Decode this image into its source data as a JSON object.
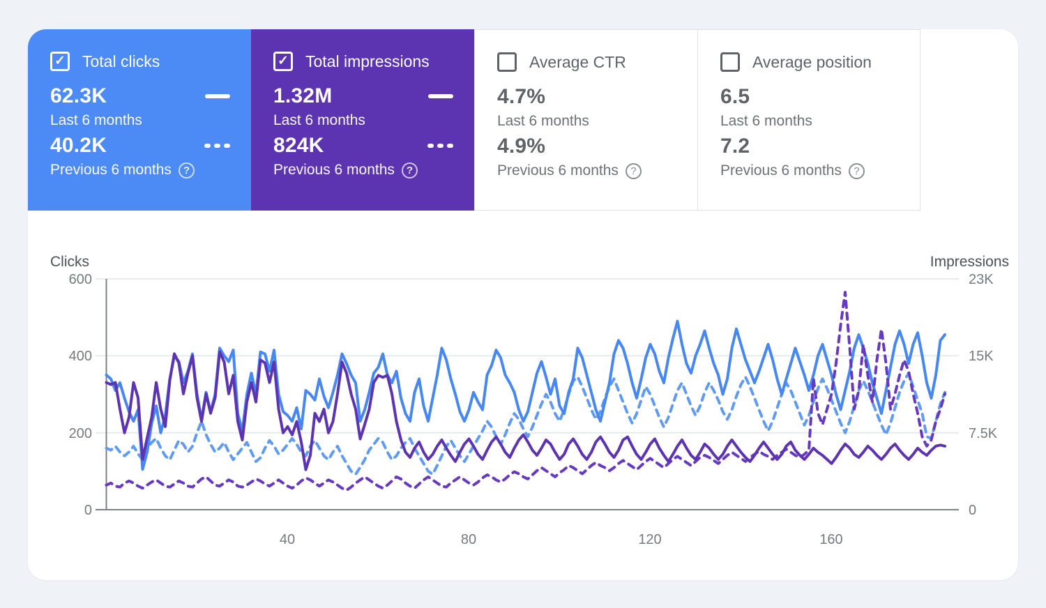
{
  "icons": {
    "check": "✓",
    "help": "?"
  },
  "cards": [
    {
      "label": "Total clicks",
      "checked": true,
      "value_current": "62.3K",
      "period_current": "Last 6 months",
      "value_previous": "40.2K",
      "period_previous": "Previous 6 months",
      "bg": "#4c8bf5"
    },
    {
      "label": "Total impressions",
      "checked": true,
      "value_current": "1.32M",
      "period_current": "Last 6 months",
      "value_previous": "824K",
      "period_previous": "Previous 6 months",
      "bg": "#5c34b2"
    },
    {
      "label": "Average CTR",
      "checked": false,
      "value_current": "4.7%",
      "period_current": "Last 6 months",
      "value_previous": "4.9%",
      "period_previous": "Previous 6 months"
    },
    {
      "label": "Average position",
      "checked": false,
      "value_current": "6.5",
      "period_current": "Last 6 months",
      "value_previous": "7.2",
      "period_previous": "Previous 6 months"
    }
  ],
  "chart": {
    "left_axis_title": "Clicks",
    "right_axis_title": "Impressions"
  },
  "chart_data": {
    "type": "line",
    "x": "daily index over last/previous 6 months (≈186 days)",
    "x_ticks": [
      40,
      80,
      120,
      160
    ],
    "left_axis": {
      "title": "Clicks",
      "ticks": [
        600,
        400,
        200,
        0
      ],
      "range": [
        0,
        600
      ]
    },
    "right_axis": {
      "title": "Impressions",
      "ticks": [
        "23K",
        "15K",
        "7.5K",
        "0"
      ],
      "range_k": [
        0,
        22.5
      ]
    },
    "grid": true,
    "series": [
      {
        "id": "clicks-previous",
        "name": "Clicks — Previous 6 months",
        "color": "#5f9bf4",
        "dashed": true,
        "axis": "left",
        "values": [
          160,
          155,
          165,
          150,
          140,
          150,
          165,
          145,
          130,
          160,
          175,
          185,
          160,
          140,
          130,
          155,
          180,
          170,
          150,
          165,
          200,
          230,
          195,
          170,
          150,
          160,
          175,
          150,
          130,
          145,
          160,
          175,
          150,
          125,
          135,
          160,
          180,
          165,
          145,
          155,
          170,
          185,
          170,
          150,
          140,
          165,
          180,
          160,
          140,
          130,
          150,
          165,
          140,
          120,
          100,
          92,
          110,
          130,
          155,
          170,
          185,
          175,
          150,
          130,
          140,
          160,
          175,
          185,
          160,
          140,
          120,
          100,
          92,
          115,
          140,
          165,
          180,
          160,
          140,
          125,
          145,
          165,
          185,
          205,
          230,
          215,
          190,
          170,
          195,
          225,
          250,
          235,
          210,
          190,
          215,
          245,
          275,
          300,
          280,
          250,
          230,
          260,
          300,
          335,
          345,
          320,
          290,
          260,
          235,
          255,
          290,
          320,
          340,
          310,
          280,
          250,
          225,
          250,
          285,
          320,
          300,
          270,
          240,
          215,
          240,
          275,
          310,
          330,
          300,
          270,
          245,
          270,
          305,
          330,
          310,
          285,
          255,
          235,
          260,
          295,
          325,
          345,
          320,
          290,
          260,
          230,
          205,
          230,
          265,
          300,
          330,
          310,
          280,
          250,
          220,
          245,
          280,
          315,
          340,
          315,
          285,
          255,
          225,
          200,
          230,
          270,
          310,
          335,
          310,
          280,
          250,
          220,
          195,
          225,
          265,
          305,
          335,
          355,
          320,
          285,
          250,
          190,
          185,
          230,
          275,
          305
        ]
      },
      {
        "id": "clicks-current",
        "name": "Clicks — Last 6 months",
        "color": "#4687f1",
        "dashed": false,
        "axis": "left",
        "values": [
          350,
          340,
          310,
          330,
          290,
          255,
          230,
          260,
          105,
          150,
          225,
          270,
          200,
          245,
          340,
          400,
          385,
          330,
          360,
          405,
          300,
          235,
          305,
          255,
          300,
          420,
          400,
          385,
          415,
          250,
          205,
          300,
          355,
          300,
          410,
          405,
          360,
          415,
          300,
          255,
          245,
          230,
          265,
          210,
          310,
          300,
          285,
          340,
          295,
          265,
          305,
          350,
          405,
          380,
          350,
          330,
          230,
          260,
          305,
          355,
          370,
          405,
          350,
          330,
          360,
          290,
          250,
          230,
          305,
          340,
          270,
          230,
          290,
          350,
          420,
          390,
          340,
          300,
          255,
          230,
          260,
          305,
          280,
          260,
          350,
          375,
          415,
          395,
          350,
          330,
          305,
          260,
          230,
          255,
          305,
          355,
          385,
          345,
          300,
          340,
          270,
          250,
          305,
          340,
          420,
          395,
          350,
          305,
          260,
          230,
          280,
          330,
          405,
          440,
          420,
          380,
          330,
          290,
          340,
          395,
          430,
          405,
          360,
          330,
          395,
          445,
          490,
          430,
          380,
          355,
          400,
          430,
          465,
          420,
          380,
          350,
          300,
          340,
          420,
          470,
          430,
          390,
          360,
          330,
          360,
          395,
          430,
          390,
          340,
          300,
          340,
          380,
          420,
          385,
          350,
          310,
          350,
          400,
          430,
          390,
          350,
          300,
          260,
          310,
          360,
          420,
          455,
          420,
          380,
          330,
          290,
          250,
          310,
          370,
          430,
          465,
          430,
          380,
          430,
          460,
          400,
          330,
          290,
          350,
          440,
          455
        ]
      },
      {
        "id": "impressions-previous",
        "name": "Impressions (K) — Previous 6 months",
        "color": "#6539c0",
        "dashed": true,
        "axis": "right",
        "values": [
          2.4,
          2.6,
          2.3,
          2.2,
          2.6,
          2.8,
          2.6,
          2.3,
          2.1,
          2.4,
          2.7,
          2.9,
          2.6,
          2.3,
          2.2,
          2.5,
          2.8,
          2.6,
          2.3,
          2.2,
          2.6,
          3.0,
          3.2,
          2.8,
          2.4,
          2.3,
          2.6,
          2.9,
          2.7,
          2.3,
          2.2,
          2.4,
          2.7,
          3.0,
          2.8,
          2.5,
          2.3,
          2.6,
          2.9,
          2.6,
          2.3,
          2.1,
          2.4,
          2.8,
          3.1,
          2.9,
          2.6,
          2.3,
          2.6,
          2.9,
          2.7,
          2.4,
          2.1,
          1.9,
          2.2,
          2.6,
          2.9,
          3.2,
          2.9,
          2.6,
          2.3,
          2.1,
          2.4,
          2.8,
          3.2,
          3.0,
          2.6,
          2.3,
          2.1,
          2.5,
          2.9,
          3.2,
          2.9,
          2.6,
          2.3,
          2.2,
          2.6,
          2.9,
          3.2,
          2.9,
          2.6,
          2.4,
          2.7,
          3.1,
          3.4,
          3.2,
          2.9,
          2.7,
          3.0,
          3.4,
          3.7,
          3.5,
          3.2,
          3.0,
          3.4,
          3.8,
          4.1,
          3.8,
          3.5,
          3.2,
          3.6,
          3.9,
          4.3,
          4.1,
          3.8,
          3.5,
          3.9,
          4.3,
          4.6,
          4.3,
          4.1,
          3.8,
          4.1,
          4.5,
          4.8,
          4.5,
          4.2,
          3.9,
          4.3,
          4.7,
          5.0,
          4.7,
          4.4,
          4.1,
          4.5,
          4.9,
          5.2,
          4.9,
          4.6,
          4.3,
          4.7,
          5.1,
          5.3,
          5.1,
          4.8,
          4.5,
          4.9,
          5.3,
          5.6,
          5.3,
          5.0,
          4.7,
          5.1,
          5.4,
          5.7,
          5.4,
          5.2,
          4.9,
          5.3,
          5.6,
          5.9,
          5.6,
          5.3,
          5.1,
          5.4,
          5.8,
          12.8,
          9.4,
          8.3,
          9.8,
          11.3,
          14.3,
          18.0,
          21.2,
          15.8,
          9.8,
          11.6,
          16.1,
          13.1,
          10.5,
          14.6,
          17.6,
          14.3,
          9.8,
          11.3,
          13.1,
          14.6,
          13.5,
          11.3,
          9.4,
          7.1,
          6.2,
          6.8,
          8.6,
          9.8,
          11.3
        ]
      },
      {
        "id": "impressions-current",
        "name": "Impressions (K) — Last 6 months",
        "color": "#5c33b0",
        "dashed": false,
        "axis": "right",
        "values": [
          12.4,
          12.2,
          12.4,
          9.8,
          7.5,
          9.0,
          12.4,
          10.9,
          4.9,
          7.0,
          9.0,
          12.4,
          9.8,
          8.1,
          12.6,
          15.2,
          14.3,
          11.3,
          13.3,
          15.0,
          10.9,
          8.6,
          11.3,
          9.4,
          10.9,
          15.4,
          14.4,
          11.3,
          13.1,
          8.6,
          6.8,
          10.5,
          12.4,
          10.5,
          14.6,
          14.3,
          12.4,
          14.4,
          9.8,
          7.5,
          8.1,
          7.3,
          8.6,
          6.6,
          3.9,
          5.3,
          9.4,
          8.6,
          9.8,
          7.5,
          8.6,
          11.3,
          14.4,
          13.3,
          11.3,
          9.8,
          6.9,
          8.3,
          9.8,
          12.4,
          13.1,
          12.9,
          13.1,
          11.3,
          8.6,
          6.8,
          5.6,
          5.1,
          6.0,
          6.6,
          5.6,
          4.9,
          5.4,
          6.2,
          6.8,
          6.0,
          5.3,
          4.7,
          5.6,
          6.4,
          6.9,
          6.2,
          5.4,
          4.9,
          5.8,
          6.6,
          7.1,
          6.4,
          5.6,
          5.1,
          6.0,
          6.8,
          7.3,
          6.6,
          5.8,
          5.3,
          6.0,
          6.8,
          6.4,
          5.6,
          4.9,
          5.4,
          6.4,
          6.9,
          6.2,
          5.4,
          4.9,
          5.6,
          6.6,
          7.1,
          6.4,
          5.6,
          5.1,
          5.8,
          6.8,
          7.1,
          6.2,
          5.4,
          4.9,
          5.6,
          6.4,
          6.9,
          6.0,
          5.3,
          4.7,
          5.4,
          6.2,
          6.8,
          6.0,
          5.3,
          4.9,
          5.6,
          6.4,
          6.0,
          5.4,
          4.9,
          5.4,
          6.2,
          6.8,
          6.2,
          5.6,
          5.1,
          4.7,
          5.3,
          6.0,
          6.6,
          6.0,
          5.4,
          4.9,
          5.4,
          6.2,
          6.6,
          5.8,
          5.3,
          4.9,
          5.4,
          6.0,
          5.6,
          5.3,
          4.9,
          4.5,
          5.1,
          5.8,
          6.4,
          6.0,
          5.4,
          5.1,
          5.6,
          6.2,
          5.8,
          5.3,
          4.9,
          5.4,
          6.0,
          6.4,
          5.8,
          5.3,
          4.9,
          5.4,
          6.0,
          5.6,
          5.3,
          5.8,
          6.2,
          6.3,
          6.2
        ]
      }
    ]
  }
}
